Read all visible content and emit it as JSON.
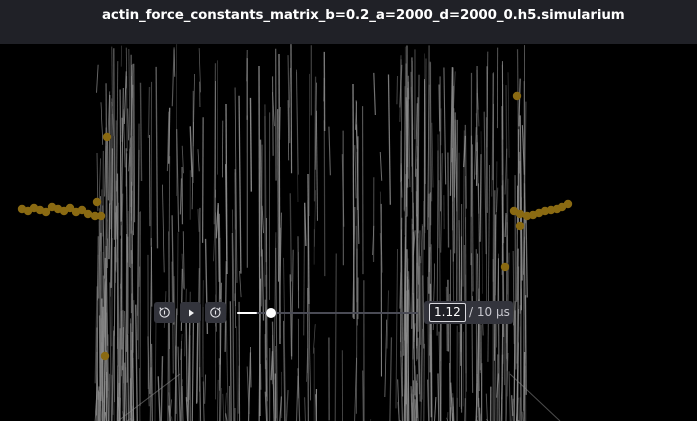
{
  "window": {
    "title": "actin_force_constants_matrix_b=0.2_a=2000_d=2000_0.h5.simularium"
  },
  "colors": {
    "title_bar": "#202127",
    "viewport_background": "#000000",
    "fiber": "#8c8c8c",
    "particle": "#8a6a12",
    "control_background": "#33343c",
    "slider_track": "#4a4b55",
    "slider_fill": "#ffffff"
  },
  "playback": {
    "step_back_icon": "step-back-icon",
    "play_icon": "play-icon",
    "step_forward_icon": "step-forward-icon",
    "current_time": "1.12",
    "total_time_label": "/ 10 μs",
    "progress_fraction": 0.112
  }
}
